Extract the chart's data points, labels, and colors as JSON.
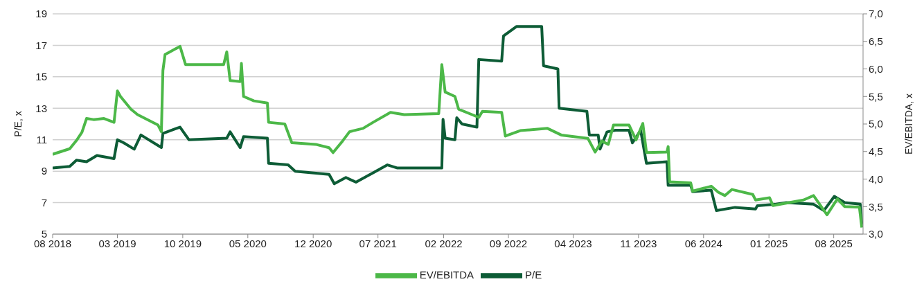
{
  "chart_data": {
    "type": "line",
    "ylabel": "P/E, x",
    "y2label": "EV/EBITDA, x",
    "xlim": [
      "2018-08-01",
      "2025-11-05"
    ],
    "xticks": [
      {
        "value": "2018-08-01",
        "label": "08 2018"
      },
      {
        "value": "2019-03-01",
        "label": "03 2019"
      },
      {
        "value": "2019-10-01",
        "label": "10 2019"
      },
      {
        "value": "2020-05-01",
        "label": "05 2020"
      },
      {
        "value": "2020-12-01",
        "label": "12 2020"
      },
      {
        "value": "2021-07-01",
        "label": "07 2021"
      },
      {
        "value": "2022-02-01",
        "label": "02 2022"
      },
      {
        "value": "2022-09-01",
        "label": "09 2022"
      },
      {
        "value": "2023-04-01",
        "label": "04 2023"
      },
      {
        "value": "2023-11-01",
        "label": "11 2023"
      },
      {
        "value": "2024-06-01",
        "label": "06 2024"
      },
      {
        "value": "2025-01-01",
        "label": "01 2025"
      },
      {
        "value": "2025-08-01",
        "label": "08 2025"
      }
    ],
    "ylim": [
      5,
      19
    ],
    "yticks": [
      5,
      7,
      9,
      11,
      13,
      15,
      17,
      19
    ],
    "y2lim": [
      3,
      7
    ],
    "y2ticks": [
      {
        "value": 3,
        "label": "3,0"
      },
      {
        "value": 3.5,
        "label": "3,5"
      },
      {
        "value": 4,
        "label": "4,0"
      },
      {
        "value": 4.5,
        "label": "4,5"
      },
      {
        "value": 5,
        "label": "5,0"
      },
      {
        "value": 5.5,
        "label": "5,5"
      },
      {
        "value": 6,
        "label": "6,0"
      },
      {
        "value": 6.5,
        "label": "6,5"
      },
      {
        "value": 7,
        "label": "7,0"
      }
    ],
    "grid": "y",
    "legend": "bottom",
    "marker": "none",
    "line_style": "solid",
    "series": [
      {
        "name": "P/E",
        "color": "#0d5c36",
        "x": [
          "2018-08-01",
          "2018-09-26",
          "2018-10-18",
          "2018-11-20",
          "2018-12-24",
          "2019-02-18",
          "2019-03-01",
          "2019-03-22",
          "2019-04-25",
          "2019-05-17",
          "2019-07-23",
          "2019-07-28",
          "2019-09-22",
          "2019-10-21",
          "2020-02-22",
          "2020-03-04",
          "2020-04-06",
          "2020-04-17",
          "2020-07-04",
          "2020-07-08",
          "2020-09-10",
          "2020-10-03",
          "2021-01-22",
          "2021-02-08",
          "2021-03-18",
          "2021-04-20",
          "2021-06-15",
          "2021-08-01",
          "2021-09-03",
          "2022-01-26",
          "2022-01-30",
          "2022-02-06",
          "2022-03-10",
          "2022-03-16",
          "2022-04-02",
          "2022-05-21",
          "2022-05-27",
          "2022-08-10",
          "2022-08-16",
          "2022-09-28",
          "2022-12-19",
          "2022-12-25",
          "2023-02-10",
          "2023-02-14",
          "2023-05-16",
          "2023-05-24",
          "2023-06-22",
          "2023-06-28",
          "2023-07-21",
          "2023-08-18",
          "2023-10-01",
          "2023-10-12",
          "2023-11-08",
          "2023-11-27",
          "2024-02-02",
          "2024-02-06",
          "2024-04-20",
          "2024-04-26",
          "2024-06-26",
          "2024-07-13",
          "2024-09-12",
          "2024-11-18",
          "2024-11-24",
          "2025-01-25",
          "2025-02-27",
          "2025-05-27",
          "2025-06-30",
          "2025-08-03",
          "2025-09-06",
          "2025-10-27",
          "2025-11-01"
        ],
        "values": [
          9.2,
          9.3,
          9.7,
          9.6,
          10.0,
          9.8,
          11.0,
          10.8,
          10.4,
          11.3,
          10.5,
          11.4,
          11.8,
          11.0,
          11.1,
          11.5,
          10.5,
          11.2,
          11.1,
          9.5,
          9.4,
          9.0,
          8.8,
          8.2,
          8.6,
          8.3,
          8.9,
          9.4,
          9.2,
          9.2,
          12.3,
          11.1,
          11.0,
          12.4,
          12.0,
          11.8,
          16.1,
          16.0,
          17.6,
          18.2,
          18.2,
          15.7,
          15.5,
          13.0,
          12.8,
          11.3,
          11.3,
          10.4,
          11.5,
          11.6,
          11.6,
          10.8,
          11.6,
          9.5,
          9.6,
          8.1,
          8.1,
          7.7,
          7.8,
          6.5,
          6.7,
          6.6,
          6.8,
          6.9,
          7.0,
          6.9,
          6.5,
          7.4,
          7.0,
          6.9,
          5.6
        ]
      },
      {
        "name": "EV/EBITDA",
        "color": "#4cb848",
        "axis": "y2",
        "x": [
          "2018-08-01",
          "2018-09-26",
          "2018-10-18",
          "2018-11-05",
          "2018-11-20",
          "2018-12-13",
          "2019-01-16",
          "2019-02-18",
          "2019-03-01",
          "2019-03-11",
          "2019-04-14",
          "2019-05-06",
          "2019-07-12",
          "2019-07-23",
          "2019-07-28",
          "2019-08-04",
          "2019-09-22",
          "2019-10-10",
          "2019-12-16",
          "2020-02-12",
          "2020-02-22",
          "2020-03-04",
          "2020-04-06",
          "2020-04-10",
          "2020-04-17",
          "2020-05-21",
          "2020-07-04",
          "2020-07-08",
          "2020-08-30",
          "2020-09-22",
          "2020-12-09",
          "2021-01-22",
          "2021-02-04",
          "2021-03-07",
          "2021-03-30",
          "2021-05-13",
          "2021-06-15",
          "2021-08-11",
          "2021-09-25",
          "2022-01-16",
          "2022-01-26",
          "2022-02-06",
          "2022-03-10",
          "2022-03-22",
          "2022-05-05",
          "2022-05-27",
          "2022-06-08",
          "2022-08-10",
          "2022-08-22",
          "2022-10-10",
          "2023-01-07",
          "2023-02-21",
          "2023-05-19",
          "2023-06-12",
          "2023-07-04",
          "2023-07-25",
          "2023-08-11",
          "2023-10-01",
          "2023-10-24",
          "2023-11-15",
          "2023-11-27",
          "2024-02-02",
          "2024-02-06",
          "2024-02-11",
          "2024-04-20",
          "2024-04-26",
          "2024-06-26",
          "2024-07-19",
          "2024-08-10",
          "2024-09-02",
          "2024-11-09",
          "2024-11-18",
          "2025-01-03",
          "2025-01-14",
          "2025-04-24",
          "2025-05-27",
          "2025-07-10",
          "2025-08-13",
          "2025-09-06",
          "2025-10-24",
          "2025-11-01"
        ],
        "values": [
          4.45,
          4.55,
          4.7,
          4.85,
          5.1,
          5.08,
          5.1,
          5.03,
          5.6,
          5.5,
          5.27,
          5.17,
          4.98,
          4.86,
          5.97,
          6.26,
          6.41,
          6.08,
          6.08,
          6.08,
          6.31,
          5.79,
          5.77,
          6.1,
          5.5,
          5.42,
          5.38,
          5.03,
          5.0,
          4.66,
          4.63,
          4.57,
          4.48,
          4.69,
          4.86,
          4.92,
          5.03,
          5.21,
          5.17,
          5.19,
          6.08,
          5.58,
          5.5,
          5.27,
          5.17,
          5.12,
          5.23,
          5.21,
          4.78,
          4.88,
          4.92,
          4.8,
          4.74,
          4.49,
          4.69,
          4.63,
          4.98,
          4.98,
          4.71,
          5.01,
          4.48,
          4.49,
          4.59,
          3.95,
          3.93,
          3.78,
          3.87,
          3.76,
          3.7,
          3.81,
          3.72,
          3.62,
          3.66,
          3.52,
          3.62,
          3.7,
          3.35,
          3.64,
          3.5,
          3.49,
          3.12
        ]
      }
    ]
  }
}
